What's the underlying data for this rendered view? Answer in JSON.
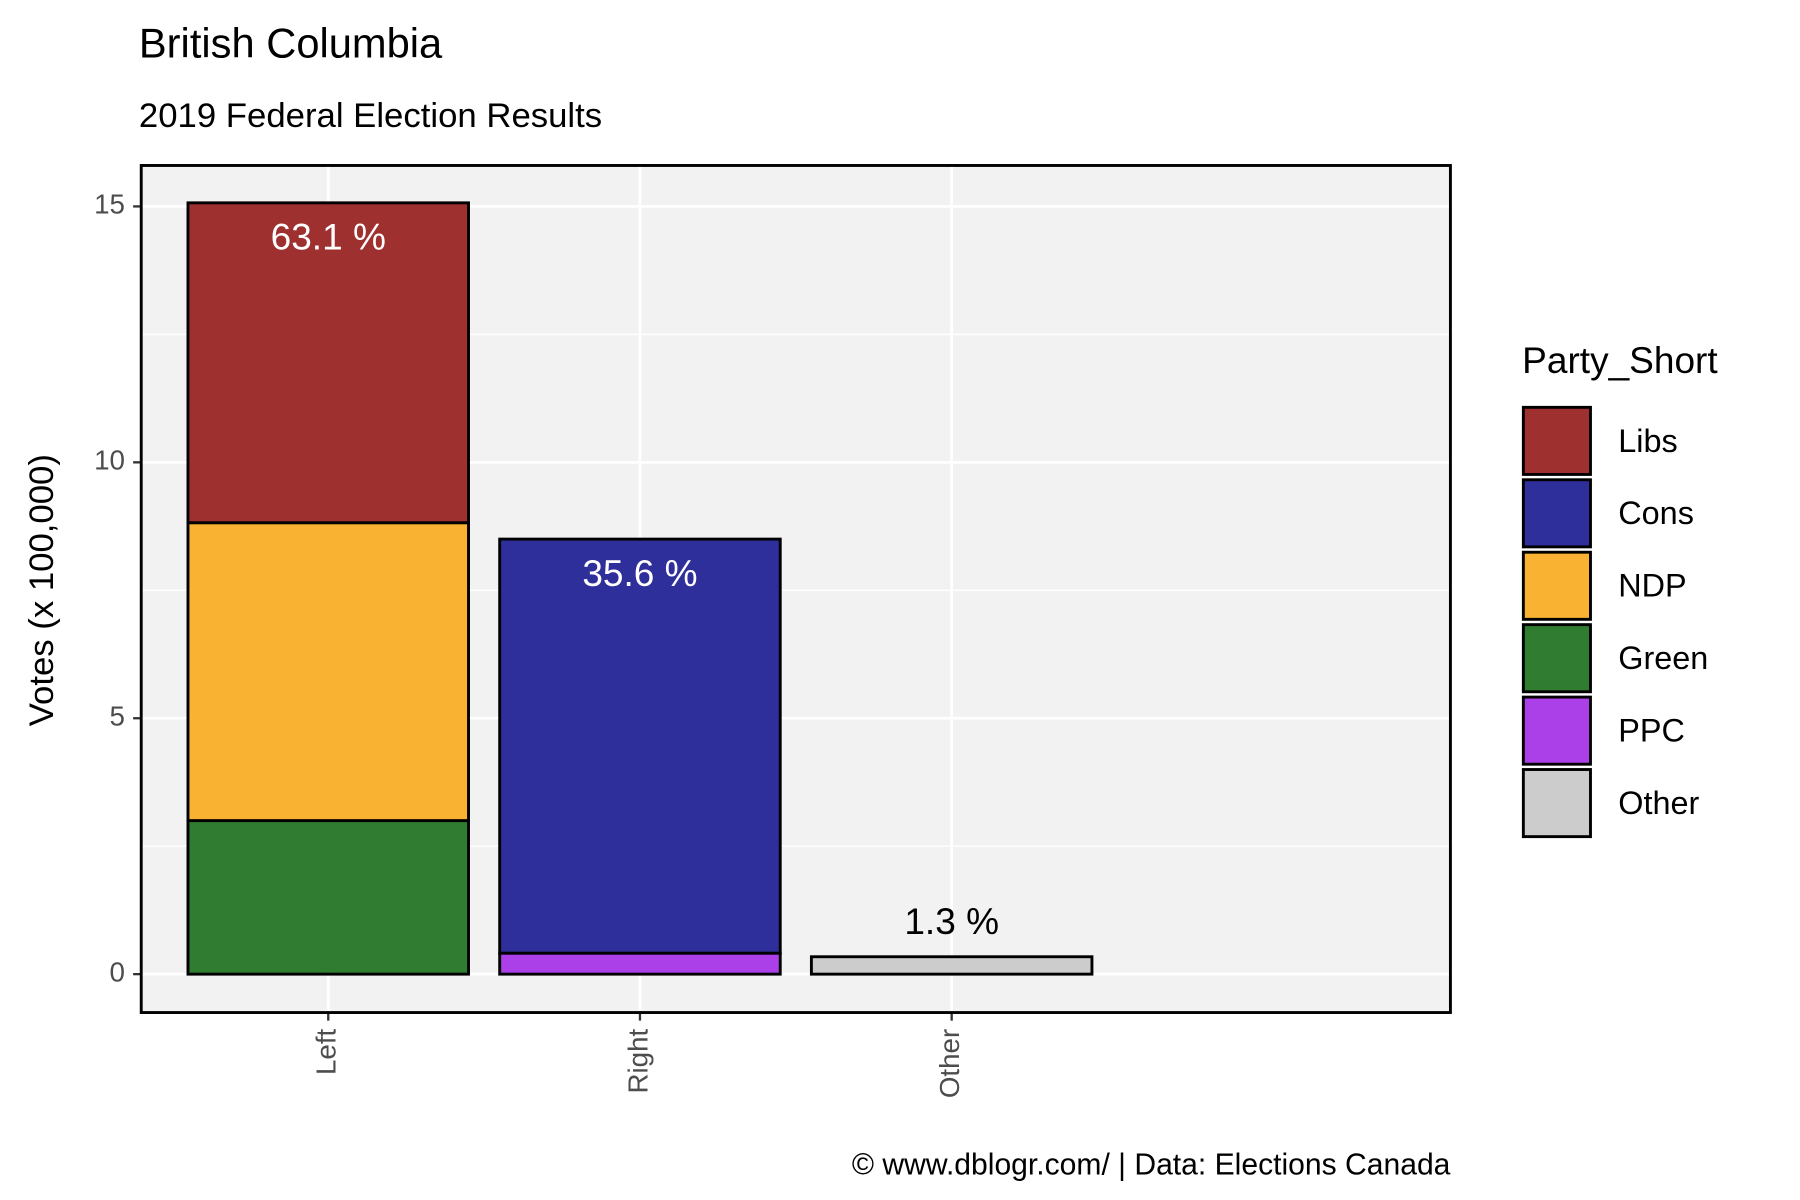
{
  "chart_data": {
    "type": "stacked_bar",
    "title": "British Columbia",
    "subtitle": "2019 Federal Election Results",
    "y_label": "Votes (x 100,000)",
    "caption": "© www.dblogr.com/  |  Data: Elections Canada",
    "legend_title": "Party_Short",
    "legend_position": "right",
    "categories": [
      "Left",
      "Right",
      "Other"
    ],
    "series": [
      {
        "name": "Libs",
        "color": "#9e3030",
        "values": [
          6.25,
          null,
          null
        ]
      },
      {
        "name": "Cons",
        "color": "#2f2f9c",
        "values": [
          null,
          8.09,
          null
        ]
      },
      {
        "name": "NDP",
        "color": "#f9b231",
        "values": [
          5.82,
          null,
          null
        ]
      },
      {
        "name": "Green",
        "color": "#307c30",
        "values": [
          3.0,
          null,
          null
        ]
      },
      {
        "name": "PPC",
        "color": "#ab40e8",
        "values": [
          null,
          0.41,
          null
        ]
      },
      {
        "name": "Other",
        "color": "#cccccc",
        "values": [
          null,
          null,
          0.34
        ]
      }
    ],
    "shares": {
      "values": [
        63.1,
        35.6,
        1.3
      ],
      "value_labels": [
        "63.1 %",
        "35.6 %",
        "1.3 %"
      ],
      "colors": [
        "#ffffff",
        "#ffffff",
        "#000000"
      ],
      "inside": [
        true,
        true,
        false
      ]
    },
    "ylim": [
      -0.75,
      15.8
    ],
    "yticks": [
      0,
      5,
      10,
      15
    ],
    "grid": true
  }
}
